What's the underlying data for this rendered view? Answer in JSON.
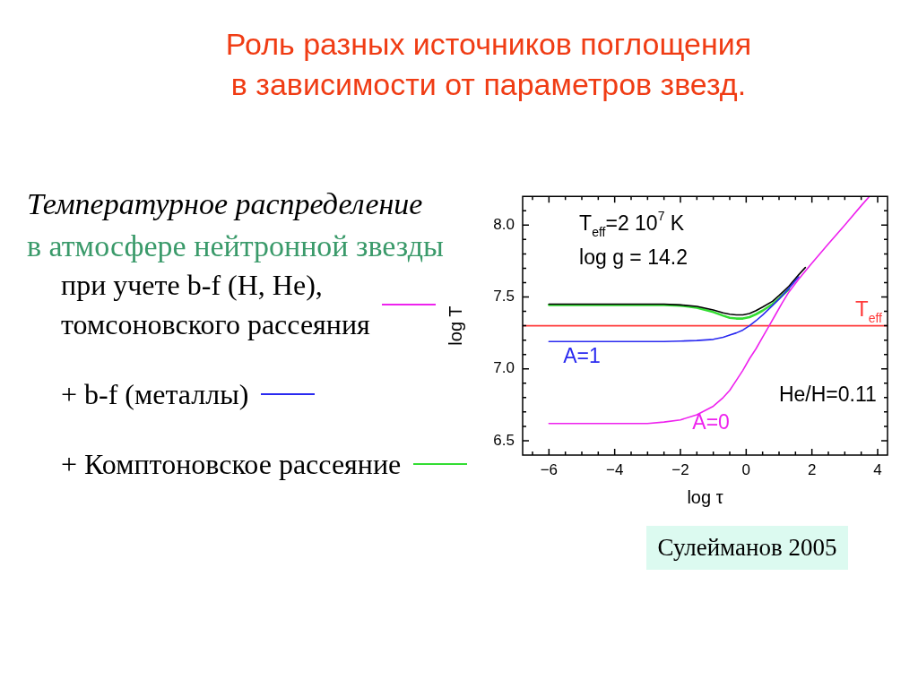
{
  "chart_data": {
    "type": "line",
    "title": "Роль разных источников поглощения в зависимости от параметров звезд.",
    "subtitle": "Температурное распределение",
    "legend_title": "в атмосфере нейтронной звезды",
    "xlabel": "log τ",
    "ylabel": "log T",
    "series": [
      {
        "name": "при учете b-f (H, He), томсоновского рассеяния",
        "color": "#ee22ee",
        "x": [
          -6,
          -4,
          -3,
          -2.5,
          -2,
          -1.5,
          -1,
          -0.7,
          -0.5,
          -0.3,
          -0.1,
          0.1,
          0.3,
          0.5,
          0.7,
          0.9,
          1.1,
          1.3,
          1.6,
          2,
          2.5,
          3,
          3.5,
          3.75
        ],
        "values": [
          6.62,
          6.62,
          6.62,
          6.63,
          6.645,
          6.68,
          6.74,
          6.8,
          6.85,
          6.92,
          6.99,
          7.07,
          7.14,
          7.22,
          7.3,
          7.38,
          7.46,
          7.535,
          7.625,
          7.735,
          7.87,
          8,
          8.135,
          8.2
        ]
      },
      {
        "name": "+ b-f (металлы)",
        "color": "#2a2af0",
        "x": [
          -6,
          -4,
          -2.5,
          -2,
          -1.5,
          -1,
          -0.7,
          -0.5,
          -0.3,
          -0.1,
          0.1,
          0.3,
          0.5,
          0.8,
          1,
          1.3,
          1.6
        ],
        "values": [
          7.19,
          7.19,
          7.19,
          7.193,
          7.197,
          7.205,
          7.22,
          7.235,
          7.25,
          7.27,
          7.3,
          7.335,
          7.375,
          7.44,
          7.485,
          7.56,
          7.64
        ]
      },
      {
        "color": "#000000",
        "x": [
          -6,
          -4,
          -2.5,
          -2,
          -1.5,
          -1,
          -0.7,
          -0.5,
          -0.3,
          -0.1,
          0.1,
          0.3,
          0.5,
          0.8,
          1,
          1.3,
          1.6,
          1.8
        ],
        "values": [
          7.45,
          7.45,
          7.45,
          7.445,
          7.435,
          7.41,
          7.39,
          7.38,
          7.375,
          7.375,
          7.385,
          7.405,
          7.43,
          7.47,
          7.51,
          7.575,
          7.655,
          7.705
        ]
      },
      {
        "name": "+ Комптоновское рассеяние",
        "color": "#33dd33",
        "x": [
          -6,
          -4,
          -2.5,
          -2,
          -1.5,
          -1,
          -0.7,
          -0.5,
          -0.3,
          -0.1,
          0.1,
          0.3,
          0.5,
          0.8,
          1,
          1.3
        ],
        "values": [
          7.445,
          7.445,
          7.445,
          7.44,
          7.425,
          7.395,
          7.37,
          7.355,
          7.35,
          7.35,
          7.36,
          7.38,
          7.405,
          7.45,
          7.49,
          7.555
        ]
      }
    ],
    "xlim": [
      -6.8,
      4.3
    ],
    "ylim": [
      6.4,
      8.2
    ],
    "xticks": [
      {
        "value": -6.5,
        "label": null
      },
      -6,
      {
        "value": -5.5,
        "label": null
      },
      {
        "value": -5,
        "label": null
      },
      {
        "value": -4.5,
        "label": null
      },
      -4,
      {
        "value": -3.5,
        "label": null
      },
      {
        "value": -3,
        "label": null
      },
      {
        "value": -2.5,
        "label": null
      },
      -2,
      {
        "value": -1.5,
        "label": null
      },
      {
        "value": -1,
        "label": null
      },
      {
        "value": -0.5,
        "label": null
      },
      0,
      {
        "value": 0.5,
        "label": null
      },
      {
        "value": 1,
        "label": null
      },
      {
        "value": 1.5,
        "label": null
      },
      2,
      {
        "value": 2.5,
        "label": null
      },
      {
        "value": 3,
        "label": null
      },
      {
        "value": 3.5,
        "label": null
      },
      4
    ],
    "yticks": [
      6.5,
      {
        "value": 6.6,
        "label": null
      },
      {
        "value": 6.7,
        "label": null
      },
      {
        "value": 6.8,
        "label": null
      },
      {
        "value": 6.9,
        "label": null
      },
      {
        "value": 7,
        "label": "7.0"
      },
      {
        "value": 7.1,
        "label": null
      },
      {
        "value": 7.2,
        "label": null
      },
      {
        "value": 7.3,
        "label": null
      },
      {
        "value": 7.4,
        "label": null
      },
      7.5,
      {
        "value": 7.6,
        "label": null
      },
      {
        "value": 7.7,
        "label": null
      },
      {
        "value": 7.8,
        "label": null
      },
      {
        "value": 7.9,
        "label": null
      },
      {
        "value": 8,
        "label": "8.0"
      },
      {
        "value": 8.1,
        "label": null
      }
    ],
    "ref_lines": [
      {
        "axis": "y",
        "value": 7.3,
        "label": "T$_{eff}$",
        "color": "#ff3b3b"
      }
    ],
    "annotations": [
      "T$_{eff}$=2 10$^{7}$ K",
      "log g = 14.2",
      "He/H=0.11",
      {
        "text": "A=1",
        "x": -5,
        "y": 7.19
      },
      {
        "text": "A=0",
        "x": -1.07,
        "y": 6.73
      },
      "Сулейманов 2005"
    ],
    "legend": "left"
  }
}
